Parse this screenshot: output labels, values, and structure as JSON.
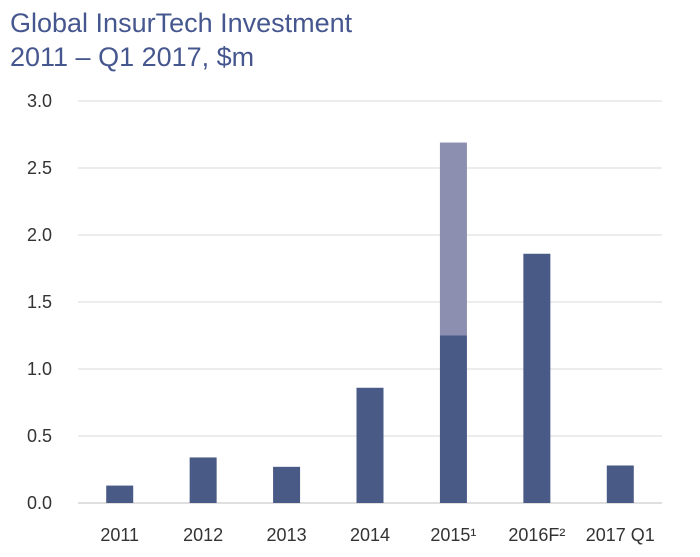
{
  "chart_data": {
    "type": "bar",
    "title": "Global InsurTech Investment",
    "subtitle": "2011 – Q1 2017, $m",
    "xlabel": "",
    "ylabel": "",
    "categories": [
      "2011",
      "2012",
      "2013",
      "2014",
      "2015¹",
      "2016F²",
      "2017 Q1"
    ],
    "series": [
      {
        "values": [
          0.13,
          0.34,
          0.27,
          0.86,
          1.25,
          1.86,
          0.28
        ],
        "color": "#4a5a87"
      },
      {
        "values": [
          0,
          0,
          0,
          0,
          1.44,
          0,
          0
        ],
        "color": "#8c8fb0"
      }
    ],
    "stacked": true,
    "ylim": [
      0,
      3.0
    ],
    "yticks": [
      "0.0",
      "0.5",
      "1.0",
      "1.5",
      "2.0",
      "2.5",
      "3.0"
    ],
    "grid": true,
    "legend": "none"
  }
}
